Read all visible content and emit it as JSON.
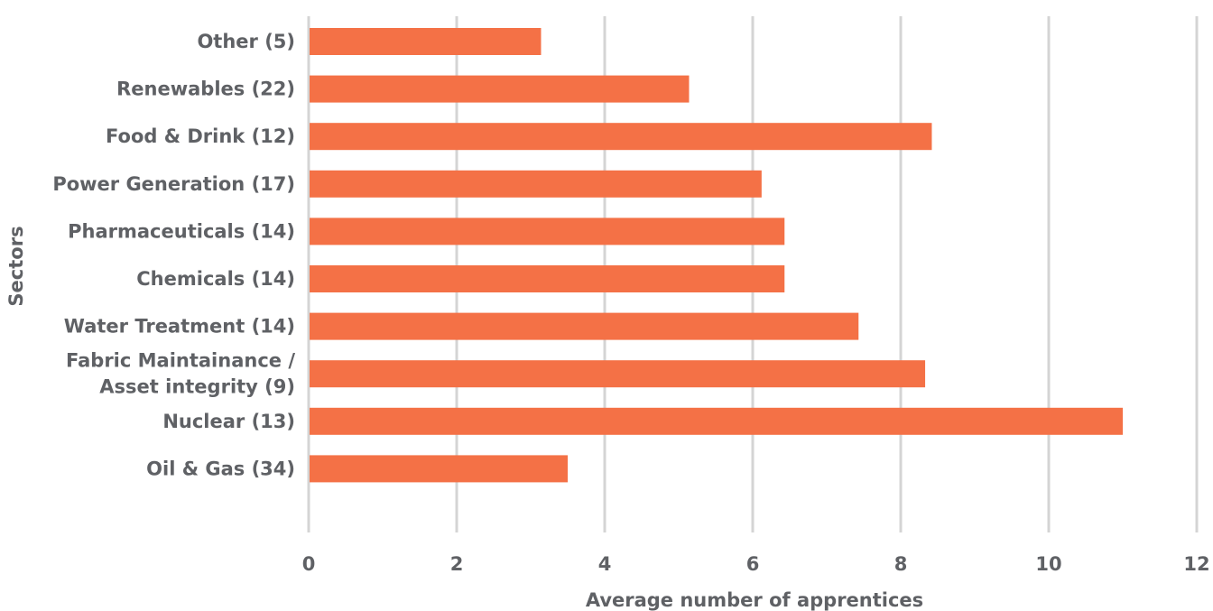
{
  "chart_data": {
    "type": "bar",
    "orientation": "horizontal",
    "categories": [
      "Other (5)",
      "Renewables (22)",
      "Food & Drink (12)",
      "Power Generation (17)",
      "Pharmaceuticals (14)",
      "Chemicals (14)",
      "Water Treatment (14)",
      "Fabric Maintainance / Asset integrity (9)",
      "Nuclear (13)",
      "Oil & Gas (34)"
    ],
    "category_lines": [
      [
        "Other (5)"
      ],
      [
        "Renewables (22)"
      ],
      [
        "Food & Drink (12)"
      ],
      [
        "Power Generation (17)"
      ],
      [
        "Pharmaceuticals (14)"
      ],
      [
        "Chemicals (14)"
      ],
      [
        "Water Treatment (14)"
      ],
      [
        "Fabric Maintainance /",
        "Asset integrity (9)"
      ],
      [
        "Nuclear (13)"
      ],
      [
        "Oil & Gas (34)"
      ]
    ],
    "values": [
      3.14,
      5.14,
      8.42,
      6.12,
      6.43,
      6.43,
      7.43,
      8.33,
      11.0,
      3.5
    ],
    "xticks": [
      "0",
      "2",
      "4",
      "6",
      "8",
      "10",
      "12"
    ],
    "xlim": [
      0,
      12
    ],
    "xlabel": "Average number of apprentices",
    "ylabel": "Sectors",
    "grid": "vertical",
    "legend": "none",
    "bar_color": "#f47146",
    "grid_color": "#d4d4d4",
    "text_color": "#5f6165"
  }
}
